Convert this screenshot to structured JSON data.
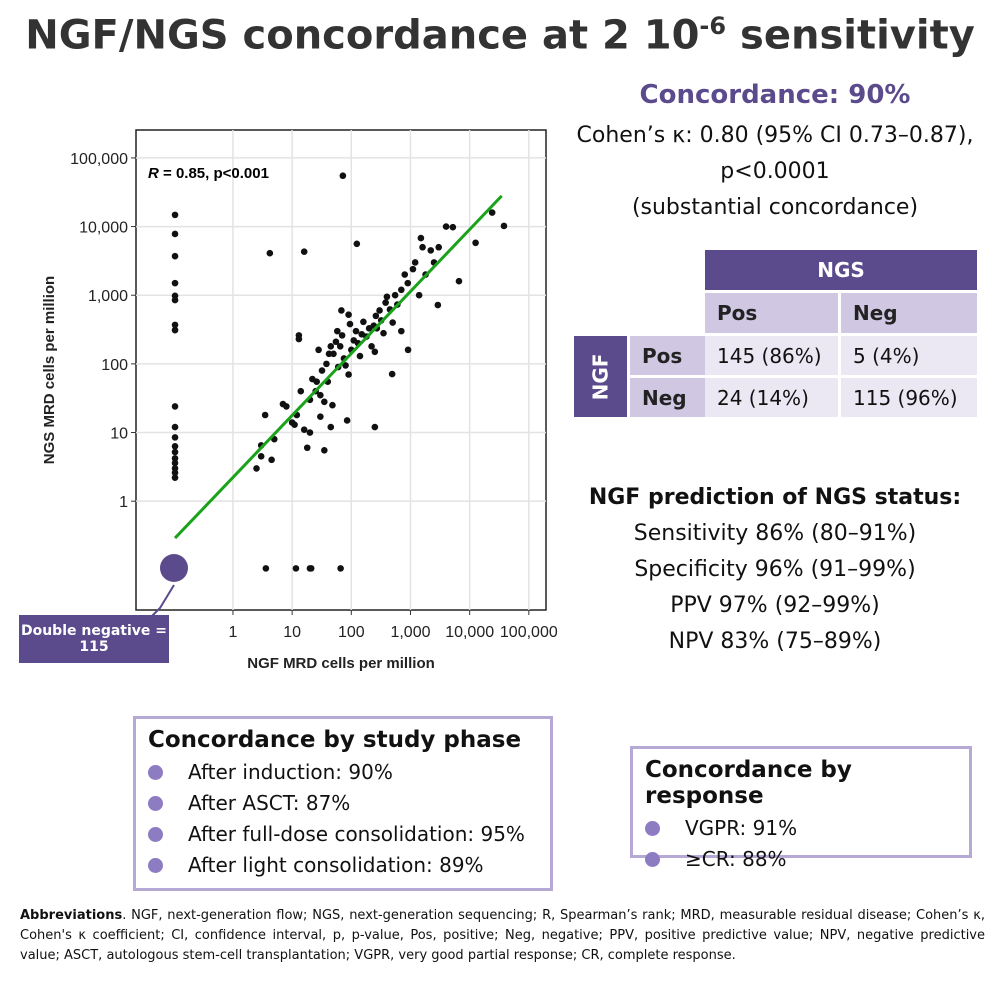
{
  "header": {
    "title": "NGF/NGS concordance at 2 10",
    "title_exponent": "-6",
    "title_end": "sensitivity"
  },
  "chart_data": {
    "type": "scatter",
    "xscale": "log",
    "yscale": "log",
    "grid": true,
    "x_label": "NGF MRD cells per million",
    "y_label": "NGS MRD cells per million",
    "annotation": {
      "italic": "R",
      "text": " = 0.85, p<0.001"
    },
    "xlim": [
      0.023,
      195000
    ],
    "ylim": [
      0.026,
      255000
    ],
    "xticks": [
      1,
      10,
      100,
      {
        "value": 1000,
        "label": "1,000"
      },
      {
        "value": 10000,
        "label": "10,000"
      },
      {
        "value": 100000,
        "label": "100,000"
      }
    ],
    "yticks": [
      1,
      10,
      100,
      {
        "value": 1000,
        "label": "1,000"
      },
      {
        "value": 10000,
        "label": "10,000"
      },
      {
        "value": 100000,
        "label": "100,000"
      }
    ],
    "series": [
      {
        "name": "Samples",
        "color": "#111111",
        "x": [
          0.105,
          0.105,
          0.105,
          0.105,
          0.105,
          0.105,
          0.105,
          0.105,
          0.105,
          0.105,
          0.105,
          0.105,
          0.105,
          0.105,
          0.105,
          0.105,
          0.105,
          0.105,
          3.6,
          11.6,
          20,
          21,
          66,
          72,
          4.2,
          16,
          124,
          250,
          490,
          910,
          2900,
          6600,
          38000,
          24000,
          12600,
          5200,
          2.5,
          3,
          3,
          3.5,
          4.5,
          5,
          7,
          8,
          10,
          11,
          12,
          13,
          13,
          14,
          16,
          18,
          20,
          20,
          22,
          25,
          26,
          28,
          30,
          30,
          32,
          35,
          38,
          40,
          42,
          45,
          48,
          50,
          55,
          58,
          60,
          65,
          68,
          70,
          75,
          80,
          85,
          90,
          95,
          100,
          110,
          120,
          130,
          140,
          150,
          160,
          180,
          200,
          220,
          240,
          260,
          270,
          300,
          320,
          350,
          380,
          400,
          450,
          500,
          550,
          600,
          700,
          800,
          900,
          1100,
          1200,
          1500,
          1600,
          1800,
          2200,
          2500,
          3000,
          4000,
          1400,
          700,
          250,
          90,
          35,
          45
        ],
        "values": [
          14800,
          7800,
          3700,
          1500,
          980,
          850,
          370,
          310,
          24,
          12,
          8.5,
          6.3,
          5.2,
          4.2,
          3.6,
          3,
          2.6,
          2.2,
          0.105,
          0.105,
          0.105,
          0.105,
          0.105,
          55000,
          4100,
          4300,
          5600,
          12,
          71,
          160,
          720,
          1600,
          10200,
          16000,
          5800,
          9800,
          3,
          4.5,
          6.5,
          18,
          4,
          8,
          26,
          24,
          14,
          13,
          18,
          230,
          260,
          40,
          11,
          6,
          30,
          10,
          60,
          40,
          55,
          160,
          17,
          35,
          80,
          5.5,
          100,
          55,
          140,
          180,
          25,
          140,
          210,
          300,
          90,
          180,
          600,
          260,
          120,
          95,
          15,
          520,
          380,
          160,
          220,
          300,
          200,
          130,
          270,
          410,
          250,
          330,
          180,
          360,
          500,
          330,
          600,
          430,
          280,
          780,
          950,
          620,
          400,
          1000,
          730,
          1200,
          2000,
          1500,
          2400,
          3000,
          6800,
          5000,
          2000,
          4500,
          3000,
          5000,
          10000,
          1000,
          300,
          150,
          70,
          28,
          12
        ]
      }
    ],
    "trend_line": {
      "color": "#1aa31a",
      "x": [
        0.105,
        34800
      ],
      "values": [
        0.29,
        28000
      ]
    },
    "double_negative_label": "Double negative = 115"
  },
  "concordance": {
    "title": "Concordance: 90%",
    "lines": [
      "Cohen’s κ: 0.80 (95% CI 0.73–0.87),",
      "p<0.0001",
      "(substantial concordance)"
    ]
  },
  "table": {
    "col_group": "NGS",
    "row_group": "NGF",
    "columns": [
      "Pos",
      "Neg"
    ],
    "rows": [
      {
        "label": "Pos",
        "cells": [
          "145 (86%)",
          "5 (4%)"
        ]
      },
      {
        "label": "Neg",
        "cells": [
          "24 (14%)",
          "115 (96%)"
        ]
      }
    ]
  },
  "prediction": {
    "title": "NGF prediction of NGS status:",
    "lines": [
      "Sensitivity 86% (80–91%)",
      "Specificity 96% (91–99%)",
      "PPV 97% (92–99%)",
      "NPV 83% (75–89%)"
    ]
  },
  "phase_box": {
    "title": "Concordance by study phase",
    "items": [
      "After induction: 90%",
      "After ASCT: 87%",
      "After full-dose consolidation: 95%",
      "After light consolidation: 89%"
    ]
  },
  "response_box": {
    "title": "Concordance by response",
    "items": [
      "VGPR: 91%",
      "≥CR: 88%"
    ]
  },
  "abbreviations": {
    "label": "Abbreviations",
    "text": ". NGF, next-generation flow; NGS, next-generation sequencing; R, Spearman’s rank; MRD, measurable residual disease; Cohen’s κ, Cohen's κ coefficient; CI, confidence interval, p, p-value, Pos, positive; Neg, negative; PPV, positive predictive value; NPV, negative predictive value; ASCT, autologous stem-cell transplantation; VGPR, very good partial response; CR, complete response."
  }
}
